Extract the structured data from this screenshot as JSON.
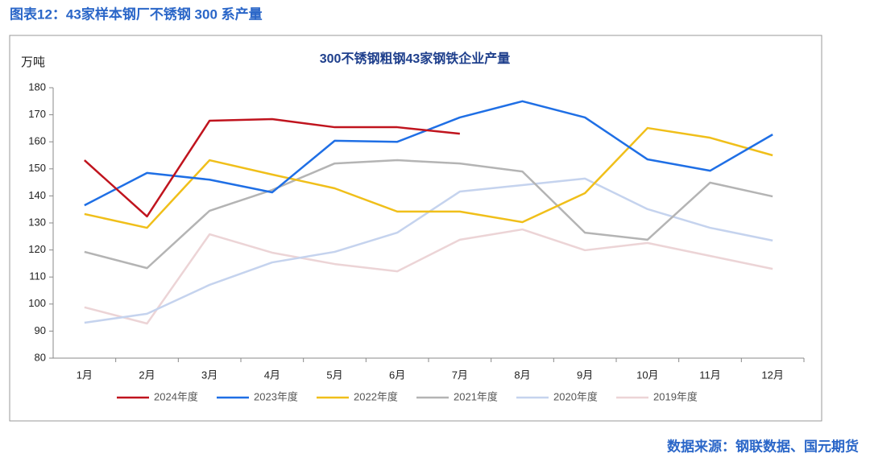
{
  "header": "图表12：43家样本钢厂不锈钢 300 系产量",
  "source": "数据来源：钢联数据、国元期货",
  "chart_data": {
    "type": "line",
    "title": "300不锈钢粗钢43家钢铁企业产量",
    "y_label": "万吨",
    "categories": [
      "1月",
      "2月",
      "3月",
      "4月",
      "5月",
      "6月",
      "7月",
      "8月",
      "9月",
      "10月",
      "11月",
      "12月"
    ],
    "series": [
      {
        "name": "2024年度",
        "color": "#c0141e",
        "values": [
          153.2,
          132.4,
          167.8,
          168.4,
          165.4,
          165.4,
          163.0,
          null,
          null,
          null,
          null,
          null
        ]
      },
      {
        "name": "2023年度",
        "color": "#1f6fe5",
        "values": [
          136.5,
          148.5,
          146,
          141.3,
          160.4,
          160,
          169,
          175,
          169,
          153.5,
          149.3,
          162.7
        ]
      },
      {
        "name": "2022年度",
        "color": "#f0bf1a",
        "values": [
          133.3,
          128.2,
          153.2,
          147.9,
          142.8,
          134.2,
          134.2,
          130.3,
          141,
          165.1,
          161.5,
          155
        ]
      },
      {
        "name": "2021年度",
        "color": "#b4b4b4",
        "values": [
          119.3,
          113.3,
          134.5,
          142.2,
          152,
          153.2,
          152,
          149,
          126.4,
          123.8,
          144.9,
          139.8
        ]
      },
      {
        "name": "2020年度",
        "color": "#c5d3ee",
        "values": [
          93.1,
          96.4,
          107.1,
          115.4,
          119.3,
          126.4,
          141.6,
          144,
          146.4,
          135.1,
          128.2,
          123.5
        ]
      },
      {
        "name": "2019年度",
        "color": "#ecd4d6",
        "values": [
          98.8,
          92.8,
          125.8,
          119,
          114.8,
          112.1,
          123.8,
          127.6,
          119.9,
          122.6,
          117.8,
          113
        ]
      }
    ],
    "ylim": [
      80,
      180
    ],
    "yticks": [
      80,
      90,
      100,
      110,
      120,
      130,
      140,
      150,
      160,
      170,
      180
    ],
    "legend": "bottom"
  }
}
